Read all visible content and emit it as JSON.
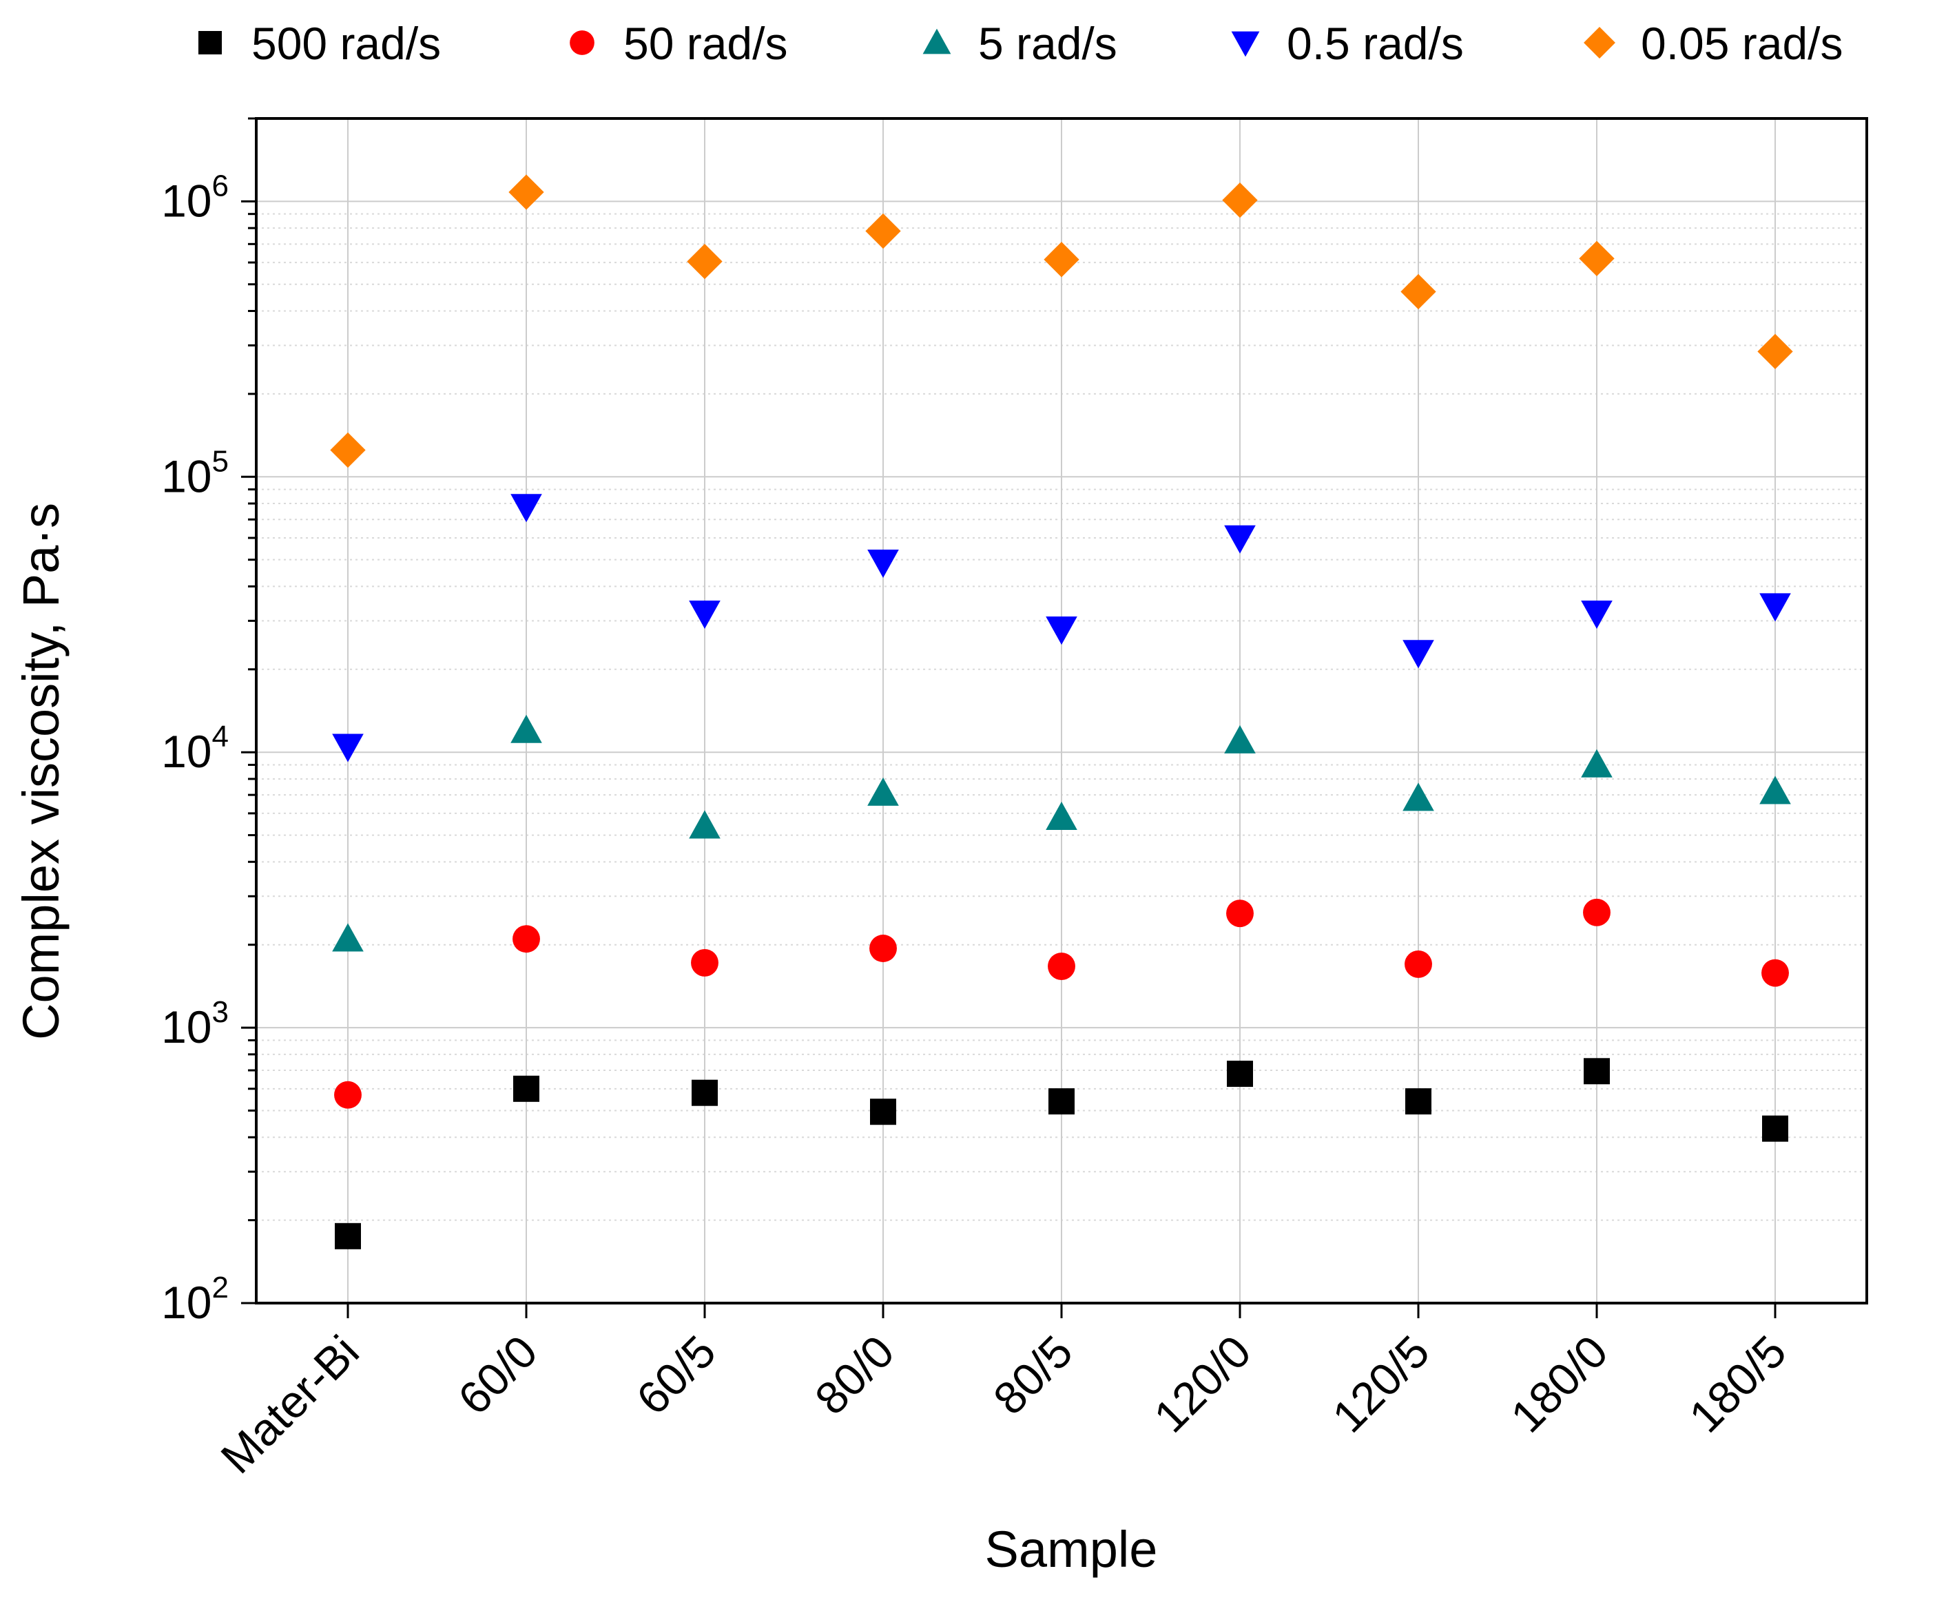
{
  "chart_data": {
    "type": "scatter",
    "title": "",
    "xlabel": "Sample",
    "ylabel": "Complex viscosity, Pa·s",
    "yscale": "log",
    "ylim": [
      100,
      2000000
    ],
    "grid": true,
    "legend_position": "top",
    "categories": [
      "Mater-Bi",
      "60/0",
      "60/5",
      "80/0",
      "80/5",
      "120/0",
      "120/5",
      "180/0",
      "180/5"
    ],
    "y_ticks": [
      {
        "base": "10",
        "exp": "2",
        "value": 100
      },
      {
        "base": "10",
        "exp": "3",
        "value": 1000
      },
      {
        "base": "10",
        "exp": "4",
        "value": 10000
      },
      {
        "base": "10",
        "exp": "5",
        "value": 100000
      },
      {
        "base": "10",
        "exp": "6",
        "value": 1000000
      }
    ],
    "series": [
      {
        "name": "500 rad/s",
        "marker": "square",
        "color": "#000000",
        "values": [
          175,
          600,
          580,
          495,
          540,
          680,
          540,
          695,
          430
        ]
      },
      {
        "name": "50 rad/s",
        "marker": "circle",
        "color": "#ff0000",
        "values": [
          570,
          2100,
          1720,
          1940,
          1670,
          2600,
          1700,
          2620,
          1580
        ]
      },
      {
        "name": "5 rad/s",
        "marker": "triangle-up",
        "color": "#008080",
        "values": [
          2100,
          12000,
          5400,
          7100,
          5800,
          11000,
          6800,
          9000,
          7200
        ]
      },
      {
        "name": "0.5 rad/s",
        "marker": "triangle-down",
        "color": "#0000ff",
        "values": [
          10500,
          78000,
          32000,
          49000,
          28000,
          60000,
          23000,
          32000,
          34000
        ]
      },
      {
        "name": "0.05 rad/s",
        "marker": "diamond",
        "color": "#ff8000",
        "values": [
          125000,
          1080000,
          605000,
          780000,
          615000,
          1010000,
          470000,
          620000,
          285000
        ]
      }
    ]
  }
}
